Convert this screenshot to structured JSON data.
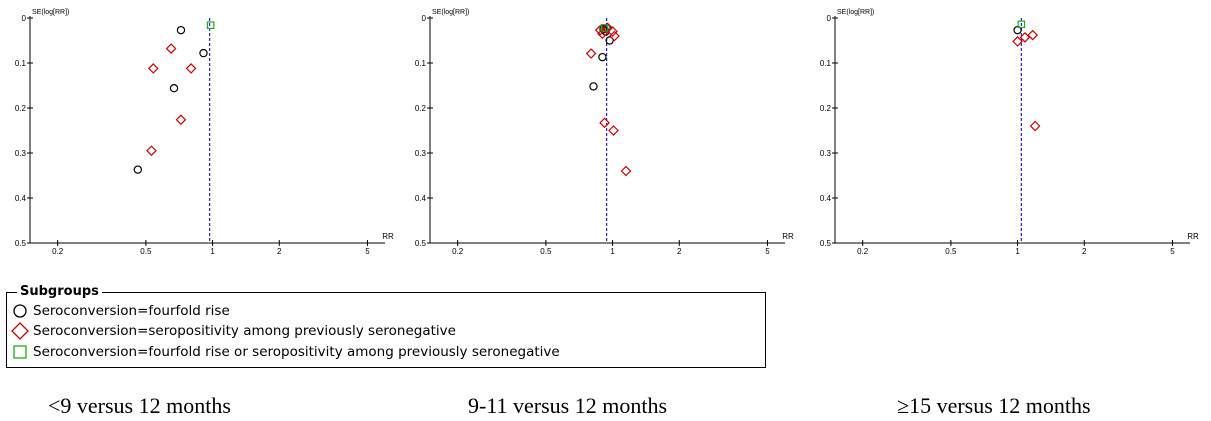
{
  "chart_data": [
    {
      "type": "scatter",
      "subtype": "funnel plot",
      "caption": "<9 versus 12 months",
      "xlabel": "RR",
      "ylabel": "SE(log[RR])",
      "xscale": "log",
      "xlim": [
        0.15,
        6
      ],
      "ylim": [
        0,
        0.5
      ],
      "y_inverted": true,
      "x_ticks": [
        "0.2",
        "0.5",
        "1",
        "2",
        "5"
      ],
      "y_ticks": [
        "0",
        "0.1",
        "0.2",
        "0.3",
        "0.4",
        "0.5"
      ],
      "pooled_rr": 0.97,
      "series": [
        {
          "name": "Seroconversion=fourfold rise",
          "marker": "circle",
          "color": "#000000",
          "points": [
            [
              0.72,
              0.027
            ],
            [
              0.91,
              0.078
            ],
            [
              0.67,
              0.156
            ],
            [
              0.46,
              0.337
            ]
          ]
        },
        {
          "name": "Seroconversion=seropositivity among previously seronegative",
          "marker": "diamond",
          "color": "#cc0000",
          "points": [
            [
              0.65,
              0.068
            ],
            [
              0.54,
              0.112
            ],
            [
              0.8,
              0.112
            ],
            [
              0.72,
              0.226
            ],
            [
              0.53,
              0.295
            ]
          ]
        },
        {
          "name": "Seroconversion=fourfold rise or seropositivity among previously seronegative",
          "marker": "square",
          "color": "#22aa22",
          "points": [
            [
              0.98,
              0.016
            ]
          ]
        }
      ]
    },
    {
      "type": "scatter",
      "subtype": "funnel plot",
      "caption": "9-11 versus 12 months",
      "xlabel": "RR",
      "ylabel": "SE(log[RR])",
      "xscale": "log",
      "xlim": [
        0.15,
        6
      ],
      "ylim": [
        0,
        0.5
      ],
      "y_inverted": true,
      "x_ticks": [
        "0.2",
        "0.5",
        "1",
        "2",
        "5"
      ],
      "y_ticks": [
        "0",
        "0.1",
        "0.2",
        "0.3",
        "0.4",
        "0.5"
      ],
      "pooled_rr": 0.94,
      "series": [
        {
          "name": "Seroconversion=fourfold rise",
          "marker": "circle",
          "color": "#000000",
          "points": [
            [
              0.94,
              0.022
            ],
            [
              0.91,
              0.025
            ],
            [
              0.93,
              0.03
            ],
            [
              0.97,
              0.05
            ],
            [
              0.9,
              0.087
            ],
            [
              0.82,
              0.152
            ]
          ]
        },
        {
          "name": "Seroconversion=seropositivity among previously seronegative",
          "marker": "diamond",
          "color": "#cc0000",
          "points": [
            [
              0.88,
              0.027
            ],
            [
              0.95,
              0.022
            ],
            [
              1.0,
              0.03
            ],
            [
              0.9,
              0.035
            ],
            [
              1.02,
              0.04
            ],
            [
              0.8,
              0.079
            ],
            [
              0.92,
              0.233
            ],
            [
              1.01,
              0.25
            ],
            [
              1.15,
              0.34
            ]
          ]
        },
        {
          "name": "Seroconversion=fourfold rise or seropositivity among previously seronegative",
          "marker": "square",
          "color": "#22aa22",
          "points": [
            [
              0.92,
              0.022
            ]
          ]
        }
      ]
    },
    {
      "type": "scatter",
      "subtype": "funnel plot",
      "caption": "≥15 versus 12 months",
      "xlabel": "RR",
      "ylabel": "SE(log[RR])",
      "xscale": "log",
      "xlim": [
        0.15,
        6
      ],
      "ylim": [
        0,
        0.5
      ],
      "y_inverted": true,
      "x_ticks": [
        "0.2",
        "0.5",
        "1",
        "2",
        "5"
      ],
      "y_ticks": [
        "0",
        "0.1",
        "0.2",
        "0.3",
        "0.4",
        "0.5"
      ],
      "pooled_rr": 1.04,
      "series": [
        {
          "name": "Seroconversion=fourfold rise",
          "marker": "circle",
          "color": "#000000",
          "points": [
            [
              1.0,
              0.027
            ]
          ]
        },
        {
          "name": "Seroconversion=seropositivity among previously seronegative",
          "marker": "diamond",
          "color": "#cc0000",
          "points": [
            [
              1.0,
              0.052
            ],
            [
              1.08,
              0.043
            ],
            [
              1.17,
              0.038
            ],
            [
              1.2,
              0.24
            ]
          ]
        },
        {
          "name": "Seroconversion=fourfold rise or seropositivity among previously seronegative",
          "marker": "square",
          "color": "#22aa22",
          "points": [
            [
              1.04,
              0.014
            ]
          ]
        }
      ]
    }
  ],
  "legend": {
    "title": "Subgroups",
    "items": [
      {
        "label": "Seroconversion=fourfold rise",
        "marker": "circle",
        "color": "#000000"
      },
      {
        "label": "Seroconversion=seropositivity among previously seronegative",
        "marker": "diamond",
        "color": "#cc0000"
      },
      {
        "label": "Seroconversion=fourfold rise or seropositivity among previously seronegative",
        "marker": "square",
        "color": "#22aa22"
      }
    ]
  },
  "colors": {
    "pooled_line": "#2222cc",
    "axis": "#000000"
  }
}
